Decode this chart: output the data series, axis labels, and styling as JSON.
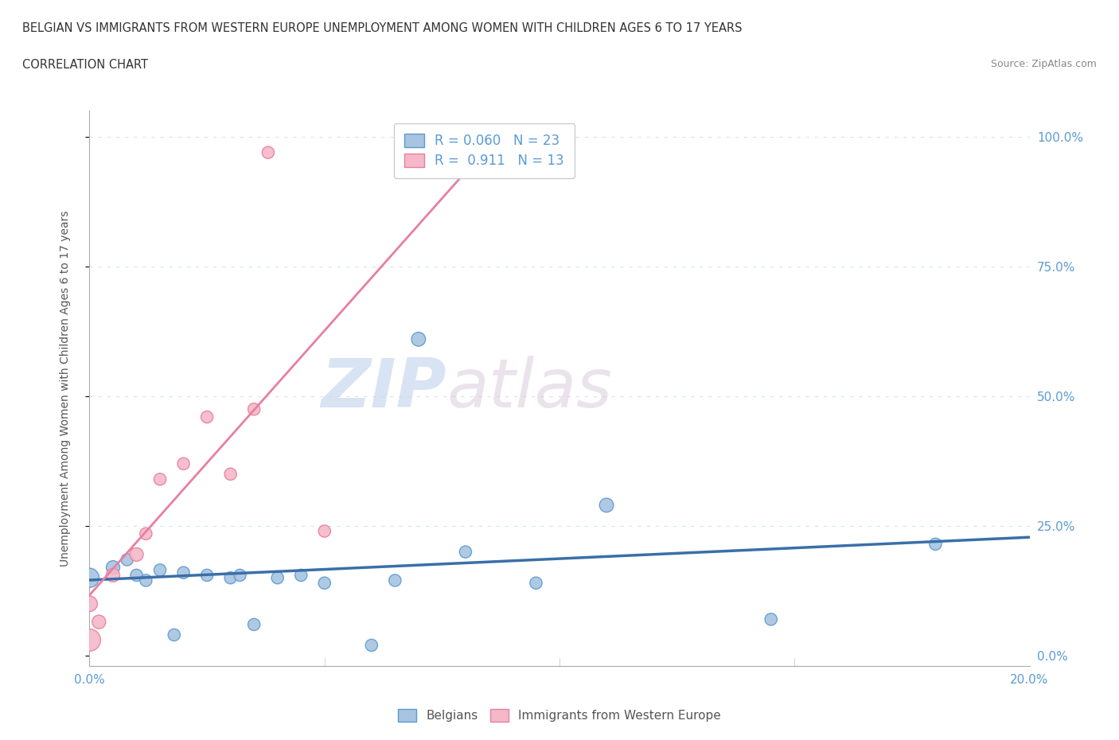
{
  "title_line1": "BELGIAN VS IMMIGRANTS FROM WESTERN EUROPE UNEMPLOYMENT AMONG WOMEN WITH CHILDREN AGES 6 TO 17 YEARS",
  "title_line2": "CORRELATION CHART",
  "source_text": "Source: ZipAtlas.com",
  "ylabel": "Unemployment Among Women with Children Ages 6 to 17 years",
  "xlim": [
    0.0,
    0.2
  ],
  "ylim": [
    -0.02,
    1.05
  ],
  "xticks": [
    0.0,
    0.05,
    0.1,
    0.15,
    0.2
  ],
  "xticklabels": [
    "0.0%",
    "",
    "",
    "",
    "20.0%"
  ],
  "yticks": [
    0.0,
    0.25,
    0.5,
    0.75,
    1.0
  ],
  "yticklabels": [
    "0.0%",
    "25.0%",
    "50.0%",
    "75.0%",
    "100.0%"
  ],
  "belgian_color": "#a8c4e0",
  "immigrant_color": "#f4b8c8",
  "belgian_edge_color": "#5b9bd5",
  "immigrant_edge_color": "#e87fa0",
  "trend_belgian_color": "#3a6fa8",
  "trend_immigrant_color": "#e87fa0",
  "legend_R1": "R = 0.060",
  "legend_N1": "N = 23",
  "legend_R2": "R =  0.911",
  "legend_N2": "N = 13",
  "watermark_zip": "ZIP",
  "watermark_atlas": "atlas",
  "background_color": "#ffffff",
  "grid_color": "#d8e4f0",
  "belgian_x": [
    0.0,
    0.005,
    0.008,
    0.01,
    0.012,
    0.015,
    0.018,
    0.02,
    0.025,
    0.03,
    0.032,
    0.035,
    0.04,
    0.045,
    0.05,
    0.06,
    0.065,
    0.07,
    0.08,
    0.095,
    0.11,
    0.145,
    0.18
  ],
  "belgian_y": [
    0.15,
    0.17,
    0.185,
    0.155,
    0.145,
    0.165,
    0.04,
    0.16,
    0.155,
    0.15,
    0.155,
    0.06,
    0.15,
    0.155,
    0.14,
    0.02,
    0.145,
    0.61,
    0.2,
    0.14,
    0.29,
    0.07,
    0.215
  ],
  "belgian_sizes": [
    300,
    150,
    120,
    120,
    120,
    120,
    120,
    120,
    120,
    120,
    120,
    120,
    120,
    120,
    120,
    120,
    120,
    160,
    120,
    120,
    160,
    120,
    120
  ],
  "immigrant_x": [
    0.0,
    0.0,
    0.002,
    0.005,
    0.01,
    0.012,
    0.015,
    0.02,
    0.025,
    0.03,
    0.035,
    0.038,
    0.05
  ],
  "immigrant_y": [
    0.03,
    0.1,
    0.065,
    0.155,
    0.195,
    0.235,
    0.34,
    0.37,
    0.46,
    0.35,
    0.475,
    0.97,
    0.24
  ],
  "immigrant_sizes": [
    400,
    200,
    150,
    150,
    150,
    120,
    120,
    120,
    120,
    120,
    120,
    120,
    120
  ]
}
